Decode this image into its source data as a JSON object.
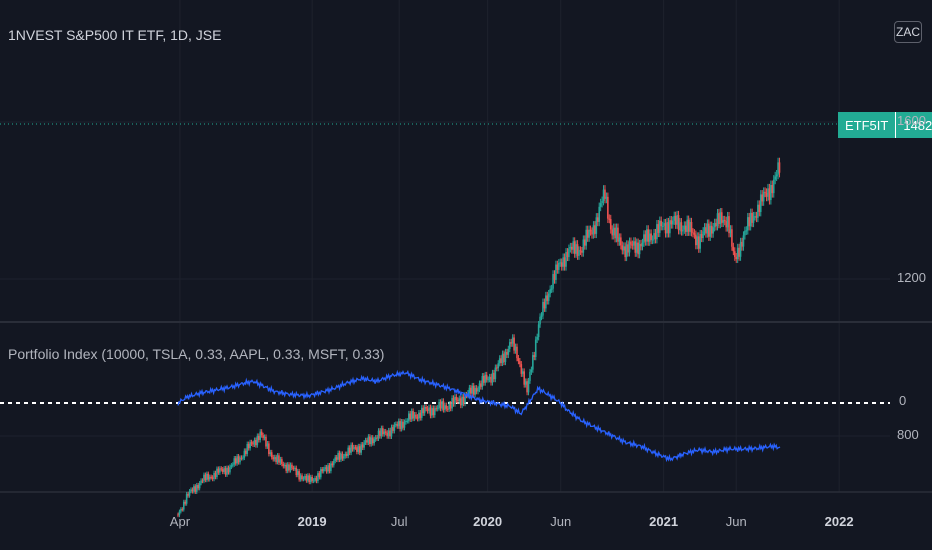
{
  "header": {
    "title": "1NVEST S&P500 IT ETF, 1D, JSE",
    "scale_button": "ZAC"
  },
  "indicator": {
    "title": "Portfolio Index (10000, TSLA, 0.33, AAPL, 0.33, MSFT, 0.33)"
  },
  "last_price": {
    "symbol": "ETF5IT",
    "value": "1482"
  },
  "colors": {
    "background": "#131722",
    "up": "#26a69a",
    "down": "#ef5350",
    "line": "#2962ff",
    "badge": "#22ab94",
    "grid": "#2a2e39"
  },
  "chart_data": [
    {
      "type": "candlestick",
      "title": "1NVEST S&P500 IT ETF, 1D, JSE",
      "y_ticks": [
        800,
        1200,
        1600
      ],
      "x_ticks": [
        "Apr",
        "2019",
        "Jul",
        "2020",
        "Jun",
        "2021",
        "Jun",
        "2022"
      ],
      "current_value": 1482,
      "series": [
        {
          "name": "ETF5IT",
          "x": [
            "2018-03-28",
            "2018-04-15",
            "2018-05-15",
            "2018-06-15",
            "2018-07-15",
            "2018-08-15",
            "2018-09-15",
            "2018-10-15",
            "2018-11-15",
            "2018-12-24",
            "2019-01-15",
            "2019-02-15",
            "2019-03-15",
            "2019-04-15",
            "2019-05-15",
            "2019-06-15",
            "2019-07-15",
            "2019-08-15",
            "2019-09-15",
            "2019-10-15",
            "2019-11-15",
            "2019-12-15",
            "2020-01-15",
            "2020-02-19",
            "2020-03-10",
            "2020-03-23",
            "2020-04-15",
            "2020-05-15",
            "2020-06-15",
            "2020-07-15",
            "2020-08-15",
            "2020-09-01",
            "2020-09-15",
            "2020-10-15",
            "2020-11-15",
            "2020-12-15",
            "2021-01-15",
            "2021-02-15",
            "2021-03-15",
            "2021-04-15",
            "2021-05-15",
            "2021-05-28",
            "2021-06-15",
            "2021-07-15",
            "2021-08-15",
            "2021-08-31"
          ],
          "close": [
            600,
            645,
            685,
            705,
            720,
            760,
            805,
            740,
            720,
            685,
            700,
            735,
            760,
            775,
            800,
            815,
            840,
            860,
            870,
            880,
            900,
            930,
            960,
            1040,
            980,
            910,
            1080,
            1200,
            1270,
            1280,
            1350,
            1420,
            1320,
            1275,
            1290,
            1320,
            1345,
            1335,
            1300,
            1340,
            1355,
            1240,
            1310,
            1380,
            1440,
            1482
          ]
        }
      ]
    },
    {
      "type": "line",
      "title": "Portfolio Index (10000, TSLA, 0.33, AAPL, 0.33, MSFT, 0.33)",
      "y_ticks": [
        0
      ],
      "reference_line": 0,
      "series": [
        {
          "name": "Portfolio Index",
          "x": [
            "2018-03-28",
            "2018-04-15",
            "2018-05-15",
            "2018-06-15",
            "2018-07-15",
            "2018-08-15",
            "2018-09-01",
            "2018-10-15",
            "2018-11-15",
            "2018-12-24",
            "2019-01-15",
            "2019-02-15",
            "2019-03-15",
            "2019-04-15",
            "2019-05-15",
            "2019-06-15",
            "2019-07-15",
            "2019-08-15",
            "2019-09-15",
            "2019-10-15",
            "2019-11-15",
            "2019-12-15",
            "2020-01-15",
            "2020-02-19",
            "2020-03-10",
            "2020-03-23",
            "2020-04-15",
            "2020-05-15",
            "2020-06-01",
            "2020-06-15",
            "2020-07-15",
            "2020-08-15",
            "2020-09-15",
            "2020-10-15",
            "2020-11-15",
            "2020-12-15",
            "2021-01-15",
            "2021-02-15",
            "2021-03-15",
            "2021-04-15",
            "2021-05-15",
            "2021-06-15",
            "2021-07-15",
            "2021-08-15",
            "2021-08-31"
          ],
          "values": [
            0,
            8,
            14,
            18,
            22,
            28,
            30,
            16,
            12,
            10,
            14,
            20,
            28,
            34,
            30,
            38,
            42,
            32,
            26,
            20,
            12,
            4,
            0,
            -5,
            -15,
            -3,
            20,
            8,
            0,
            -10,
            -25,
            -35,
            -45,
            -55,
            -60,
            -70,
            -78,
            -70,
            -65,
            -68,
            -64,
            -64,
            -63,
            -60,
            -62
          ]
        }
      ]
    }
  ]
}
